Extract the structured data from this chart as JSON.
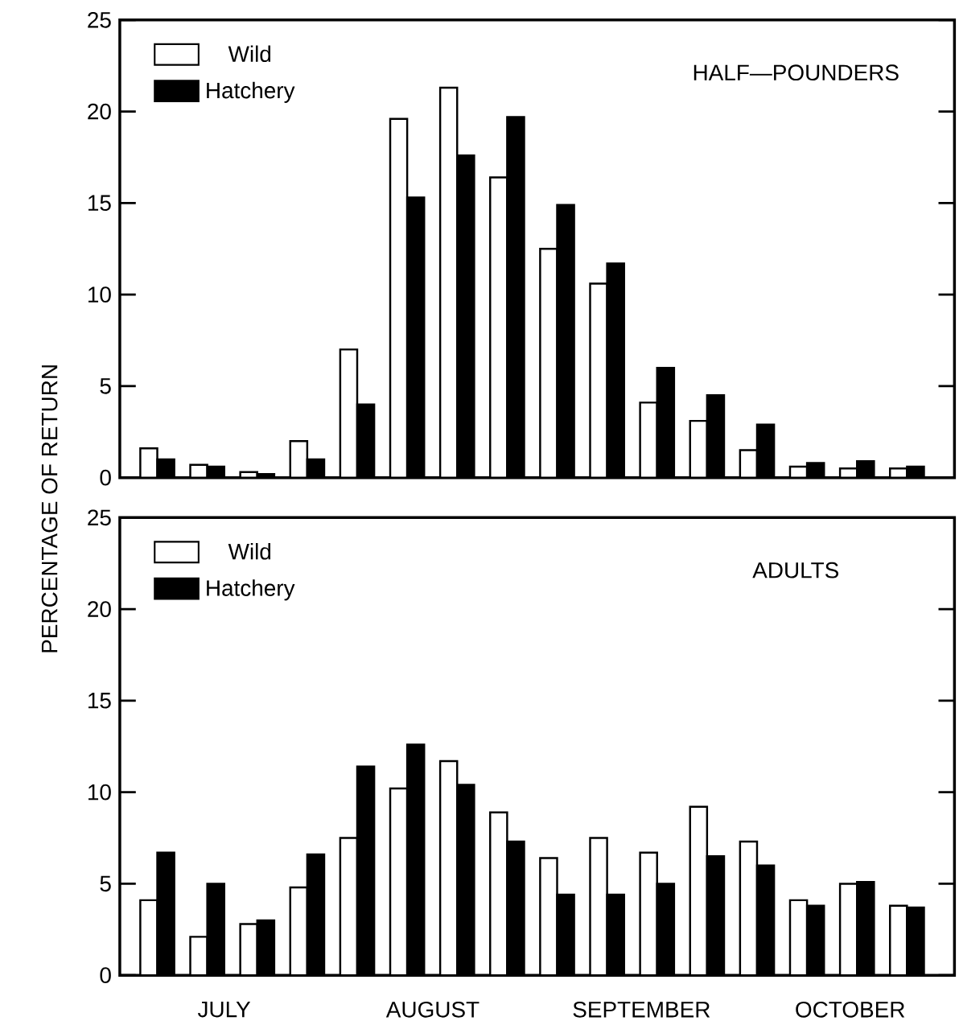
{
  "chart_data": [
    {
      "type": "bar",
      "title": "HALF—POUNDERS",
      "ylabel": "PERCENTAGE OF RETURN",
      "categories": [
        null,
        null,
        null,
        null,
        null,
        null,
        null,
        null,
        null,
        null,
        null,
        null,
        null,
        null,
        null,
        null
      ],
      "series": [
        {
          "name": "Wild",
          "color": "#ffffff",
          "values": [
            1.6,
            0.7,
            0.3,
            2.0,
            7.0,
            19.6,
            21.3,
            16.4,
            12.5,
            10.6,
            4.1,
            3.1,
            1.5,
            0.6,
            0.5,
            0.5
          ]
        },
        {
          "name": "Hatchery",
          "color": "#000000",
          "values": [
            1.0,
            0.6,
            0.2,
            1.0,
            4.0,
            15.3,
            17.6,
            19.7,
            14.9,
            11.7,
            6.0,
            4.5,
            2.9,
            0.8,
            0.9,
            0.6
          ]
        }
      ],
      "ylim": [
        0,
        25
      ],
      "yticks": [
        0,
        5,
        10,
        15,
        20,
        25
      ],
      "legend": "top left",
      "tick_labels": "y"
    },
    {
      "type": "bar",
      "title": "ADULTS",
      "categories": [
        null,
        null,
        null,
        null,
        null,
        null,
        null,
        null,
        null,
        null,
        null,
        null,
        null,
        null,
        null,
        null
      ],
      "series": [
        {
          "name": "Wild",
          "color": "#ffffff",
          "values": [
            4.1,
            2.1,
            2.8,
            4.8,
            7.5,
            10.2,
            11.7,
            8.9,
            6.4,
            7.5,
            6.7,
            9.2,
            7.3,
            4.1,
            5.0,
            3.8
          ]
        },
        {
          "name": "Hatchery",
          "color": "#000000",
          "values": [
            6.7,
            5.0,
            3.0,
            6.6,
            11.4,
            12.6,
            10.4,
            7.3,
            4.4,
            4.4,
            5.0,
            6.5,
            6.0,
            3.8,
            5.1,
            3.7
          ]
        }
      ],
      "ylim": [
        0,
        25
      ],
      "yticks": [
        0,
        5,
        10,
        15,
        20,
        25
      ],
      "legend": "top left",
      "tick_labels": "y",
      "annotations": [
        "JULY",
        "AUGUST",
        "SEPTEMBER",
        "OCTOBER"
      ]
    }
  ]
}
